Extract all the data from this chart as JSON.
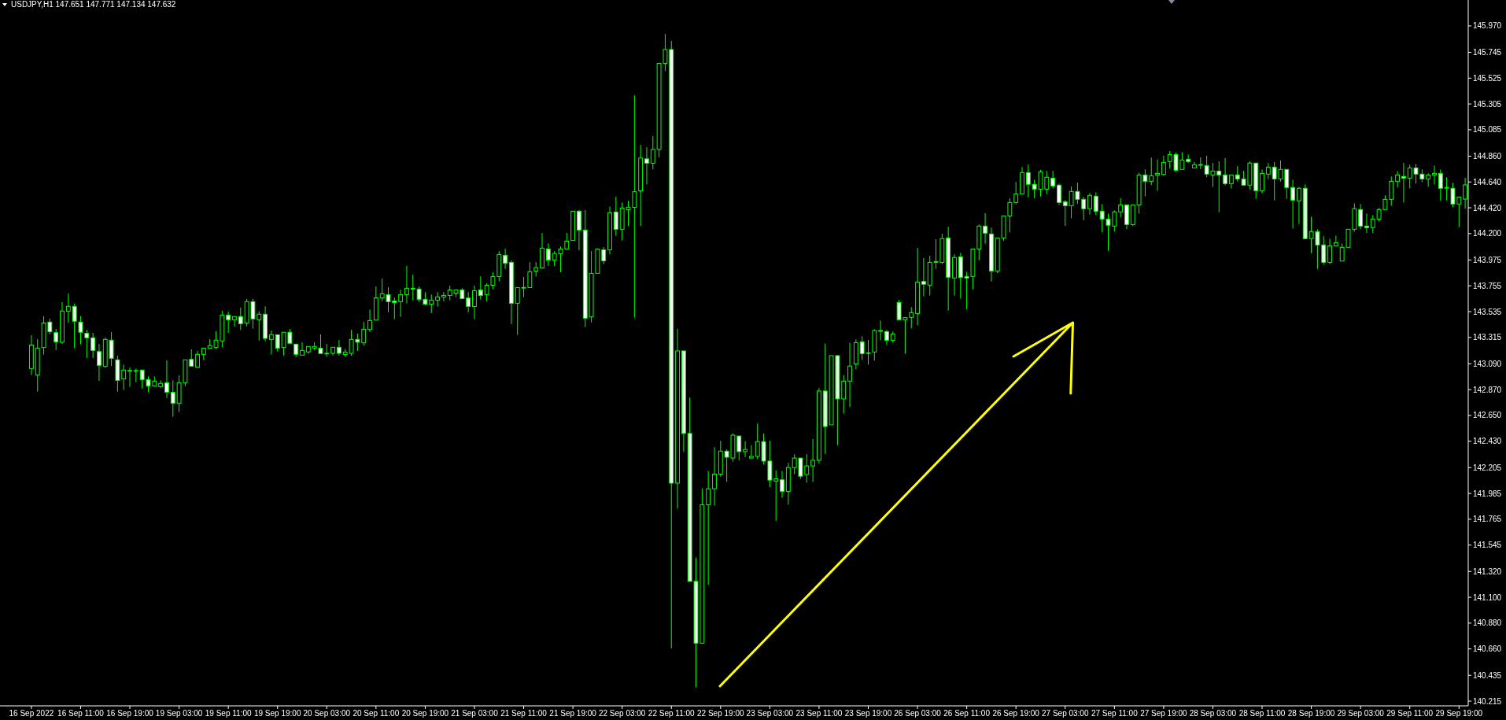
{
  "chart_data": {
    "type": "candlestick",
    "title": "USDJPY,H1  147.651 147.771 147.134 147.632",
    "color": "#00ff00",
    "ylim": [
      140.175,
      146.191
    ],
    "yticks": [
      {
        "value": 145.97,
        "label": "145.970"
      },
      {
        "value": 145.745,
        "label": "145.745"
      },
      {
        "value": 145.525,
        "label": "145.525"
      },
      {
        "value": 145.305,
        "label": "145.305"
      },
      {
        "value": 145.085,
        "label": "145.085"
      },
      {
        "value": 144.86,
        "label": "144.860"
      },
      {
        "value": 144.64,
        "label": "144.640"
      },
      {
        "value": 144.42,
        "label": "144.420"
      },
      {
        "value": 144.2,
        "label": "144.200"
      },
      {
        "value": 143.975,
        "label": "143.975"
      },
      {
        "value": 143.755,
        "label": "143.755"
      },
      {
        "value": 143.535,
        "label": "143.535"
      },
      {
        "value": 143.315,
        "label": "143.315"
      },
      {
        "value": 143.09,
        "label": "143.090"
      },
      {
        "value": 142.87,
        "label": "142.870"
      },
      {
        "value": 142.65,
        "label": "142.650"
      },
      {
        "value": 142.43,
        "label": "142.430"
      },
      {
        "value": 142.205,
        "label": "142.205"
      },
      {
        "value": 141.985,
        "label": "141.985"
      },
      {
        "value": 141.765,
        "label": "141.765"
      },
      {
        "value": 141.545,
        "label": "141.545"
      },
      {
        "value": 141.32,
        "label": "141.320"
      },
      {
        "value": 141.1,
        "label": "141.100"
      },
      {
        "value": 140.88,
        "label": "140.880"
      },
      {
        "value": 140.66,
        "label": "140.660"
      },
      {
        "value": 140.435,
        "label": "140.435"
      },
      {
        "value": 140.215,
        "label": "140.215"
      }
    ],
    "categories": [
      "16 Sep 2022",
      null,
      null,
      null,
      null,
      null,
      null,
      null,
      "16 Sep 11:00",
      null,
      null,
      null,
      null,
      null,
      null,
      null,
      "16 Sep 19:00",
      null,
      null,
      null,
      null,
      null,
      null,
      null,
      "19 Sep 03:00",
      null,
      null,
      null,
      null,
      null,
      null,
      null,
      "19 Sep 11:00",
      null,
      null,
      null,
      null,
      null,
      null,
      null,
      "19 Sep 19:00",
      null,
      null,
      null,
      null,
      null,
      null,
      null,
      "20 Sep 03:00",
      null,
      null,
      null,
      null,
      null,
      null,
      null,
      "20 Sep 11:00",
      null,
      null,
      null,
      null,
      null,
      null,
      null,
      "20 Sep 19:00",
      null,
      null,
      null,
      null,
      null,
      null,
      null,
      "21 Sep 03:00",
      null,
      null,
      null,
      null,
      null,
      null,
      null,
      "21 Sep 11:00",
      null,
      null,
      null,
      null,
      null,
      null,
      null,
      "21 Sep 19:00",
      null,
      null,
      null,
      null,
      null,
      null,
      null,
      "22 Sep 03:00",
      null,
      null,
      null,
      null,
      null,
      null,
      null,
      "22 Sep 11:00",
      null,
      null,
      null,
      null,
      null,
      null,
      null,
      "22 Sep 19:00",
      null,
      null,
      null,
      null,
      null,
      null,
      null,
      "23 Sep 03:00",
      null,
      null,
      null,
      null,
      null,
      null,
      null,
      "23 Sep 11:00",
      null,
      null,
      null,
      null,
      null,
      null,
      null,
      "23 Sep 19:00",
      null,
      null,
      null,
      null,
      null,
      null,
      null,
      "26 Sep 03:00",
      null,
      null,
      null,
      null,
      null,
      null,
      null,
      "26 Sep 11:00",
      null,
      null,
      null,
      null,
      null,
      null,
      null,
      "26 Sep 19:00",
      null,
      null,
      null,
      null,
      null,
      null,
      null,
      "27 Sep 03:00",
      null,
      null,
      null,
      null,
      null,
      null,
      null,
      "27 Sep 11:00",
      null,
      null,
      null,
      null,
      null,
      null,
      null,
      "27 Sep 19:00",
      null,
      null,
      null,
      null,
      null,
      null,
      null,
      "28 Sep 03:00",
      null,
      null,
      null,
      null,
      null,
      null,
      null,
      "28 Sep 11:00",
      null,
      null,
      null,
      null,
      null,
      null,
      null,
      "28 Sep 19:00",
      null,
      null,
      null,
      null,
      null,
      null,
      null,
      "29 Sep 03:00",
      null,
      null,
      null,
      null,
      null,
      null,
      null,
      "29 Sep 11:00",
      null,
      null,
      null,
      null,
      null,
      null,
      null,
      "29 Sep 19:00",
      null
    ],
    "ohlc": [
      [
        143.05,
        143.334,
        142.994,
        143.25
      ],
      [
        142.994,
        143.3,
        142.853,
        143.224
      ],
      [
        143.229,
        143.495,
        143.169,
        143.439
      ],
      [
        143.446,
        143.475,
        143.341,
        143.363
      ],
      [
        143.356,
        143.388,
        143.207,
        143.278
      ],
      [
        143.274,
        143.616,
        143.26,
        143.54
      ],
      [
        143.538,
        143.69,
        143.441,
        143.58
      ],
      [
        143.58,
        143.602,
        143.222,
        143.453
      ],
      [
        143.446,
        143.495,
        143.256,
        143.359
      ],
      [
        143.35,
        143.381,
        143.139,
        143.312
      ],
      [
        143.312,
        143.354,
        143.139,
        143.204
      ],
      [
        143.195,
        143.26,
        142.945,
        143.077
      ],
      [
        143.068,
        143.314,
        143.055,
        143.298
      ],
      [
        143.292,
        143.361,
        143.072,
        143.137
      ],
      [
        143.124,
        143.16,
        142.853,
        142.949
      ],
      [
        142.961,
        143.084,
        142.867,
        143.037
      ],
      [
        143.033,
        143.059,
        142.894,
        143.031
      ],
      [
        143.032,
        143.05,
        142.934,
        143.03
      ],
      [
        143.037,
        143.037,
        142.88,
        142.956
      ],
      [
        142.956,
        142.983,
        142.847,
        142.902
      ],
      [
        142.902,
        142.983,
        142.894,
        142.943
      ],
      [
        142.896,
        142.949,
        142.885,
        142.923
      ],
      [
        142.929,
        143.119,
        142.8,
        142.849
      ],
      [
        142.847,
        142.949,
        142.639,
        142.755
      ],
      [
        142.755,
        142.992,
        142.679,
        142.929
      ],
      [
        142.929,
        143.133,
        142.898,
        143.124
      ],
      [
        143.128,
        143.213,
        143.061,
        143.07
      ],
      [
        143.061,
        143.2,
        143.055,
        143.171
      ],
      [
        143.171,
        143.231,
        143.119,
        143.224
      ],
      [
        143.224,
        143.3,
        143.224,
        143.245
      ],
      [
        143.229,
        143.368,
        143.213,
        143.292
      ],
      [
        143.285,
        143.542,
        143.233,
        143.506
      ],
      [
        143.506,
        143.535,
        143.354,
        143.466
      ],
      [
        143.466,
        143.493,
        143.408,
        143.493
      ],
      [
        143.493,
        143.569,
        143.377,
        143.432
      ],
      [
        143.439,
        143.643,
        143.41,
        143.62
      ],
      [
        143.62,
        143.643,
        143.39,
        143.473
      ],
      [
        143.466,
        143.538,
        143.289,
        143.513
      ],
      [
        143.513,
        143.58,
        143.283,
        143.307
      ],
      [
        143.298,
        143.374,
        143.169,
        143.338
      ],
      [
        143.338,
        143.345,
        143.195,
        143.224
      ],
      [
        143.229,
        143.359,
        143.162,
        143.359
      ],
      [
        143.359,
        143.388,
        143.256,
        143.265
      ],
      [
        143.258,
        143.258,
        143.148,
        143.171
      ],
      [
        143.164,
        143.274,
        143.164,
        143.204
      ],
      [
        143.191,
        143.245,
        143.175,
        143.238
      ],
      [
        143.224,
        143.274,
        143.204,
        143.238
      ],
      [
        143.224,
        143.341,
        143.178,
        143.178
      ],
      [
        143.175,
        143.26,
        143.15,
        143.18
      ],
      [
        143.18,
        143.231,
        143.16,
        143.231
      ],
      [
        143.231,
        143.293,
        143.16,
        143.18
      ],
      [
        143.17,
        143.213,
        143.15,
        143.19
      ],
      [
        143.179,
        143.38,
        143.16,
        143.298
      ],
      [
        143.298,
        143.347,
        143.199,
        143.275
      ],
      [
        143.269,
        143.447,
        143.246,
        143.385
      ],
      [
        143.383,
        143.553,
        143.36,
        143.459
      ],
      [
        143.463,
        143.749,
        143.456,
        143.653
      ],
      [
        143.651,
        143.816,
        143.624,
        143.687
      ],
      [
        143.68,
        143.743,
        143.53,
        143.62
      ],
      [
        143.626,
        143.655,
        143.47,
        143.611
      ],
      [
        143.62,
        143.722,
        143.49,
        143.68
      ],
      [
        143.68,
        143.924,
        143.604,
        143.734
      ],
      [
        143.734,
        143.85,
        143.631,
        143.727
      ],
      [
        143.727,
        143.747,
        143.62,
        143.64
      ],
      [
        143.64,
        143.702,
        143.588,
        143.599
      ],
      [
        143.599,
        143.68,
        143.523,
        143.633
      ],
      [
        143.633,
        143.702,
        143.577,
        143.66
      ],
      [
        143.66,
        143.702,
        143.624,
        143.673
      ],
      [
        143.673,
        143.756,
        143.631,
        143.72
      ],
      [
        143.693,
        143.72,
        143.658,
        143.72
      ],
      [
        143.72,
        143.736,
        143.64,
        143.646
      ],
      [
        143.651,
        143.702,
        143.53,
        143.579
      ],
      [
        143.579,
        143.756,
        143.47,
        143.713
      ],
      [
        143.72,
        143.836,
        143.637,
        143.673
      ],
      [
        143.68,
        143.776,
        143.624,
        143.76
      ],
      [
        143.76,
        143.87,
        143.727,
        143.834
      ],
      [
        143.834,
        144.051,
        143.794,
        144.022
      ],
      [
        144.015,
        144.071,
        143.899,
        143.948
      ],
      [
        143.955,
        143.971,
        143.43,
        143.606
      ],
      [
        143.606,
        143.74,
        143.336,
        143.74
      ],
      [
        143.741,
        143.83,
        143.658,
        143.739
      ],
      [
        143.74,
        143.957,
        143.74,
        143.875
      ],
      [
        143.881,
        143.957,
        143.834,
        143.91
      ],
      [
        143.908,
        144.205,
        143.908,
        144.076
      ],
      [
        144.069,
        144.118,
        143.924,
        143.975
      ],
      [
        143.975,
        144.051,
        143.924,
        144.031
      ],
      [
        144.029,
        144.091,
        143.87,
        144.069
      ],
      [
        144.069,
        144.205,
        144.069,
        144.136
      ],
      [
        144.141,
        144.391,
        144.141,
        144.391
      ],
      [
        144.391,
        144.402,
        144.058,
        144.23
      ],
      [
        144.23,
        144.4,
        143.403,
        143.479
      ],
      [
        143.49,
        144.051,
        143.443,
        143.861
      ],
      [
        143.861,
        144.076,
        143.86,
        144.069
      ],
      [
        144.062,
        144.085,
        143.939,
        143.968
      ],
      [
        144.062,
        144.431,
        144.022,
        144.378
      ],
      [
        144.384,
        144.514,
        144.181,
        144.237
      ],
      [
        144.237,
        144.465,
        144.141,
        144.418
      ],
      [
        144.404,
        144.48,
        144.264,
        144.425
      ],
      [
        144.424,
        145.378,
        143.484,
        144.557
      ],
      [
        144.564,
        144.955,
        144.265,
        144.844
      ],
      [
        144.837,
        144.936,
        144.619,
        144.8
      ],
      [
        144.8,
        145.032,
        144.748,
        144.918
      ],
      [
        144.918,
        145.658,
        144.851,
        145.651
      ],
      [
        145.651,
        145.902,
        145.585,
        145.769
      ],
      [
        145.769,
        145.843,
        140.665,
        142.073
      ],
      [
        142.073,
        143.388,
        141.855,
        143.2
      ],
      [
        143.2,
        143.2,
        142.342,
        142.497
      ],
      [
        142.497,
        142.802,
        141.236,
        141.236
      ],
      [
        141.236,
        141.439,
        140.333,
        140.709
      ],
      [
        140.709,
        142.029,
        140.709,
        141.889
      ],
      [
        141.889,
        142.176,
        141.207,
        142.025
      ],
      [
        142.025,
        142.379,
        141.881,
        142.15
      ],
      [
        142.15,
        142.434,
        142.128,
        142.346
      ],
      [
        142.346,
        142.36,
        142.084,
        142.294
      ],
      [
        142.287,
        142.497,
        142.257,
        142.482
      ],
      [
        142.475,
        142.475,
        142.268,
        142.342
      ],
      [
        142.342,
        142.43,
        142.294,
        142.36
      ],
      [
        142.287,
        142.397,
        142.279,
        142.301
      ],
      [
        142.301,
        142.581,
        142.279,
        142.427
      ],
      [
        142.427,
        142.497,
        142.231,
        142.261
      ],
      [
        142.261,
        142.434,
        142.04,
        142.099
      ],
      [
        142.091,
        142.183,
        141.752,
        142.11
      ],
      [
        142.102,
        142.176,
        141.948,
        142.003
      ],
      [
        142.003,
        142.246,
        141.889,
        142.206
      ],
      [
        142.206,
        142.32,
        142.15,
        142.287
      ],
      [
        142.287,
        142.294,
        142.11,
        142.132
      ],
      [
        142.147,
        142.32,
        142.077,
        142.22
      ],
      [
        142.22,
        142.449,
        142.084,
        142.268
      ],
      [
        142.268,
        142.884,
        142.239,
        142.858
      ],
      [
        142.858,
        143.263,
        142.323,
        142.556
      ],
      [
        142.57,
        143.16,
        142.57,
        143.16
      ],
      [
        143.16,
        143.167,
        142.397,
        142.791
      ],
      [
        142.791,
        142.994,
        142.666,
        142.943
      ],
      [
        142.943,
        143.27,
        142.721,
        143.071
      ],
      [
        143.088,
        143.298,
        143.043,
        143.271
      ],
      [
        143.278,
        143.325,
        143.124,
        143.177
      ],
      [
        143.18,
        143.294,
        143.083,
        143.184
      ],
      [
        143.191,
        143.385,
        143.117,
        143.374
      ],
      [
        143.37,
        143.459,
        143.291,
        143.374
      ],
      [
        143.365,
        143.379,
        143.251,
        143.291
      ],
      [
        143.291,
        143.365,
        143.271,
        143.345
      ],
      [
        143.613,
        143.636,
        143.466,
        143.466
      ],
      [
        143.466,
        143.484,
        143.177,
        143.484
      ],
      [
        143.486,
        143.573,
        143.392,
        143.526
      ],
      [
        143.519,
        144.078,
        143.419,
        143.786
      ],
      [
        143.792,
        143.991,
        143.665,
        143.768
      ],
      [
        143.761,
        144.011,
        143.672,
        143.955
      ],
      [
        143.955,
        144.152,
        143.9,
        143.962
      ],
      [
        143.955,
        144.199,
        143.94,
        144.157
      ],
      [
        144.163,
        144.26,
        143.544,
        143.828
      ],
      [
        143.821,
        144.023,
        143.672,
        143.996
      ],
      [
        144.002,
        144.036,
        143.645,
        143.826
      ],
      [
        143.835,
        143.873,
        143.553,
        143.821
      ],
      [
        143.835,
        144.076,
        143.725,
        144.069
      ],
      [
        144.069,
        144.277,
        143.973,
        144.264
      ],
      [
        144.264,
        144.374,
        144.114,
        144.204
      ],
      [
        144.197,
        144.251,
        143.792,
        143.882
      ],
      [
        143.882,
        144.17,
        143.862,
        144.163
      ],
      [
        144.163,
        144.36,
        144.137,
        144.351
      ],
      [
        144.351,
        144.501,
        144.21,
        144.465
      ],
      [
        144.465,
        144.64,
        144.45,
        144.539
      ],
      [
        144.539,
        144.767,
        144.539,
        144.72
      ],
      [
        144.72,
        144.789,
        144.508,
        144.62
      ],
      [
        144.62,
        144.66,
        144.503,
        144.579
      ],
      [
        144.579,
        144.743,
        144.517,
        144.727
      ],
      [
        144.579,
        144.734,
        144.537,
        144.68
      ],
      [
        144.673,
        144.734,
        144.586,
        144.606
      ],
      [
        144.613,
        144.626,
        144.445,
        144.465
      ],
      [
        144.472,
        144.485,
        144.266,
        144.438
      ],
      [
        144.438,
        144.602,
        144.331,
        144.559
      ],
      [
        144.559,
        144.635,
        144.452,
        144.492
      ],
      [
        144.492,
        144.512,
        144.313,
        144.412
      ],
      [
        144.412,
        144.546,
        144.362,
        144.526
      ],
      [
        144.519,
        144.552,
        144.358,
        144.391
      ],
      [
        144.391,
        144.452,
        144.21,
        144.324
      ],
      [
        144.324,
        144.371,
        144.054,
        144.271
      ],
      [
        144.264,
        144.398,
        144.217,
        144.385
      ],
      [
        144.385,
        144.501,
        144.338,
        144.445
      ],
      [
        144.445,
        144.452,
        144.237,
        144.277
      ],
      [
        144.277,
        144.452,
        144.264,
        144.445
      ],
      [
        144.445,
        144.72,
        144.371,
        144.7
      ],
      [
        144.7,
        144.747,
        144.517,
        144.646
      ],
      [
        144.646,
        144.848,
        144.613,
        144.693
      ],
      [
        144.7,
        144.83,
        144.564,
        144.713
      ],
      [
        144.704,
        144.863,
        144.693,
        144.807
      ],
      [
        144.814,
        144.903,
        144.754,
        144.874
      ],
      [
        144.874,
        144.89,
        144.727,
        144.74
      ],
      [
        144.747,
        144.894,
        144.747,
        144.827
      ],
      [
        144.834,
        144.874,
        144.801,
        144.814
      ],
      [
        144.76,
        144.81,
        144.76,
        144.787
      ],
      [
        144.788,
        144.85,
        144.749,
        144.786
      ],
      [
        144.78,
        144.863,
        144.68,
        144.707
      ],
      [
        144.7,
        144.803,
        144.597,
        144.733
      ],
      [
        144.733,
        144.816,
        144.382,
        144.7
      ],
      [
        144.7,
        144.843,
        144.611,
        144.626
      ],
      [
        144.626,
        144.707,
        144.584,
        144.7
      ],
      [
        144.7,
        144.776,
        144.644,
        144.666
      ],
      [
        144.666,
        144.736,
        144.613,
        144.613
      ],
      [
        144.613,
        144.816,
        144.577,
        144.801
      ],
      [
        144.801,
        144.801,
        144.496,
        144.566
      ],
      [
        144.566,
        144.747,
        144.543,
        144.713
      ],
      [
        144.707,
        144.803,
        144.664,
        144.767
      ],
      [
        144.767,
        144.81,
        144.483,
        144.666
      ],
      [
        144.666,
        144.823,
        144.644,
        144.747
      ],
      [
        144.747,
        144.754,
        144.496,
        144.593
      ],
      [
        144.593,
        144.66,
        144.242,
        144.485
      ],
      [
        144.479,
        144.599,
        144.282,
        144.586
      ],
      [
        144.586,
        144.619,
        144.148,
        144.157
      ],
      [
        144.157,
        144.344,
        144.034,
        144.217
      ],
      [
        144.217,
        144.237,
        143.899,
        144.103
      ],
      [
        144.103,
        144.177,
        143.933,
        143.955
      ],
      [
        143.955,
        144.157,
        143.94,
        144.096
      ],
      [
        144.096,
        144.183,
        144.096,
        144.123
      ],
      [
        143.966,
        144.116,
        143.966,
        144.083
      ],
      [
        144.083,
        144.244,
        144.076,
        144.237
      ],
      [
        144.237,
        144.458,
        144.217,
        144.412
      ],
      [
        144.405,
        144.452,
        144.237,
        144.264
      ],
      [
        144.264,
        144.371,
        144.204,
        144.251
      ],
      [
        144.251,
        144.358,
        144.204,
        144.324
      ],
      [
        144.324,
        144.418,
        144.304,
        144.405
      ],
      [
        144.405,
        144.526,
        144.398,
        144.492
      ],
      [
        144.492,
        144.687,
        144.438,
        144.646
      ],
      [
        144.646,
        144.733,
        144.593,
        144.7
      ],
      [
        144.687,
        144.803,
        144.465,
        144.673
      ],
      [
        144.673,
        144.787,
        144.586,
        144.76
      ],
      [
        144.76,
        144.794,
        144.626,
        144.707
      ],
      [
        144.707,
        144.747,
        144.64,
        144.666
      ],
      [
        144.666,
        144.713,
        144.599,
        144.7
      ],
      [
        144.7,
        144.78,
        144.619,
        144.713
      ],
      [
        144.713,
        144.747,
        144.479,
        144.586
      ],
      [
        144.593,
        144.68,
        144.483,
        144.591
      ],
      [
        144.586,
        144.633,
        144.425,
        144.452
      ],
      [
        144.452,
        144.519,
        144.255,
        144.512
      ],
      [
        144.494,
        144.675,
        144.414,
        144.615
      ]
    ]
  }
}
